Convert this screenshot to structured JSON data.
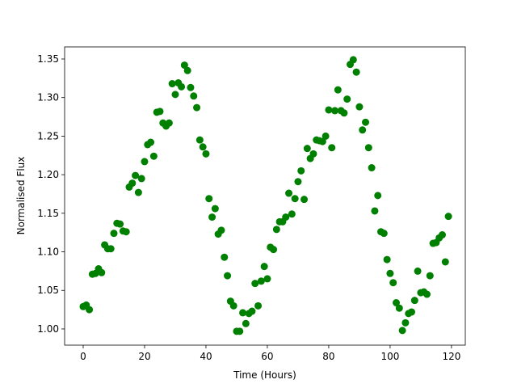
{
  "chart_data": {
    "type": "scatter",
    "xlabel": "Time (Hours)",
    "ylabel": "Normalised Flux",
    "x": [
      0,
      1,
      2,
      3,
      4,
      5,
      6,
      7,
      8,
      9,
      10,
      11,
      12,
      13,
      14,
      15,
      16,
      17,
      18,
      19,
      20,
      21,
      22,
      23,
      24,
      25,
      26,
      27,
      28,
      29,
      30,
      31,
      32,
      33,
      34,
      35,
      36,
      37,
      38,
      39,
      40,
      41,
      42,
      43,
      44,
      45,
      46,
      47,
      48,
      49,
      50,
      51,
      52,
      53,
      54,
      55,
      56,
      57,
      58,
      59,
      60,
      61,
      62,
      63,
      64,
      65,
      66,
      67,
      68,
      69,
      70,
      71,
      72,
      73,
      74,
      75,
      76,
      77,
      78,
      79,
      80,
      81,
      82,
      83,
      84,
      85,
      86,
      87,
      88,
      89,
      90,
      91,
      92,
      93,
      94,
      95,
      96,
      97,
      98,
      99,
      100,
      101,
      102,
      103,
      104,
      105,
      106,
      107,
      108,
      109,
      110,
      111,
      112,
      113,
      114,
      115,
      116,
      117,
      118,
      119
    ],
    "values": [
      1.029,
      1.031,
      1.025,
      1.071,
      1.072,
      1.078,
      1.073,
      1.109,
      1.104,
      1.104,
      1.124,
      1.137,
      1.136,
      1.127,
      1.126,
      1.184,
      1.189,
      1.199,
      1.177,
      1.195,
      1.217,
      1.239,
      1.242,
      1.224,
      1.281,
      1.282,
      1.267,
      1.263,
      1.267,
      1.318,
      1.304,
      1.319,
      1.314,
      1.342,
      1.335,
      1.313,
      1.302,
      1.287,
      1.245,
      1.236,
      1.227,
      1.169,
      1.145,
      1.156,
      1.123,
      1.128,
      1.093,
      1.069,
      1.036,
      1.03,
      0.997,
      0.997,
      1.021,
      1.007,
      1.02,
      1.023,
      1.059,
      1.03,
      1.062,
      1.081,
      1.065,
      1.106,
      1.103,
      1.129,
      1.139,
      1.139,
      1.145,
      1.176,
      1.149,
      1.169,
      1.191,
      1.205,
      1.168,
      1.234,
      1.221,
      1.227,
      1.245,
      1.244,
      1.243,
      1.25,
      1.284,
      1.235,
      1.283,
      1.31,
      1.283,
      1.28,
      1.298,
      1.343,
      1.349,
      1.333,
      1.288,
      1.258,
      1.268,
      1.235,
      1.209,
      1.153,
      1.173,
      1.126,
      1.124,
      1.09,
      1.072,
      1.06,
      1.034,
      1.027,
      0.998,
      1.008,
      1.02,
      1.022,
      1.037,
      1.075,
      1.047,
      1.048,
      1.045,
      1.069,
      1.111,
      1.112,
      1.118,
      1.122,
      1.087,
      1.146
    ],
    "color": "#008000",
    "xlim": [
      -6.05,
      124.5
    ],
    "xticks": [
      0,
      20,
      40,
      60,
      80,
      100,
      120
    ],
    "ylim": [
      0.979,
      1.3657
    ],
    "yticks": [
      {
        "value": 1.0,
        "label": "1.00"
      },
      1.05,
      {
        "value": 1.1,
        "label": "1.10"
      },
      1.15,
      {
        "value": 1.2,
        "label": "1.20"
      },
      1.25,
      {
        "value": 1.3,
        "label": "1.30"
      },
      1.35
    ]
  }
}
